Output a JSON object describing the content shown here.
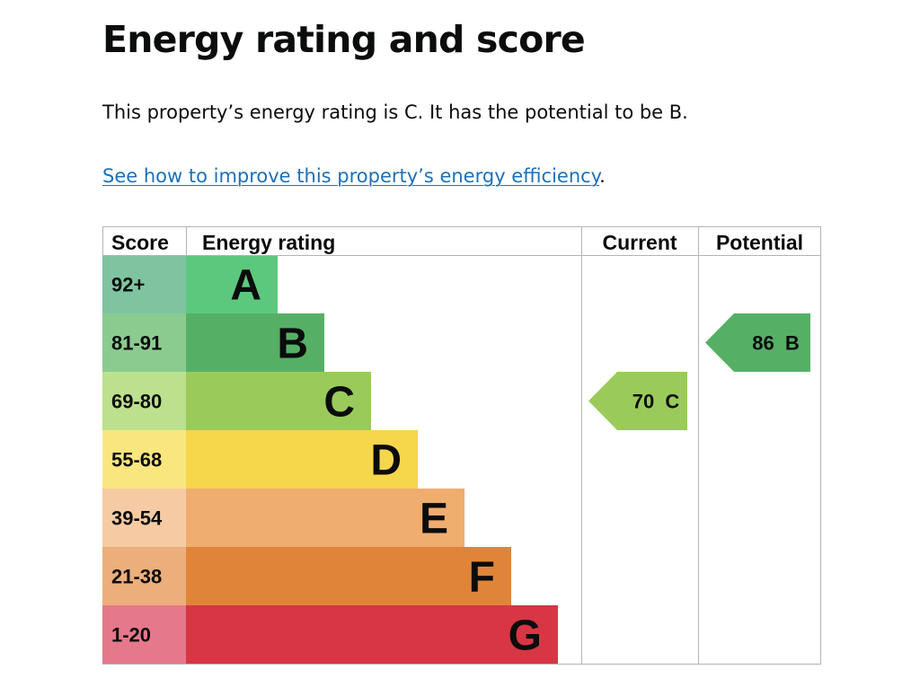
{
  "heading": "Energy rating and score",
  "summary": "This property’s energy rating is C. It has the potential to be B.",
  "improve_link": {
    "text": "See how to improve this property’s energy efficiency",
    "suffix": "."
  },
  "colors": {
    "link": "#1d70b8",
    "grid": "#b1b4b6",
    "text": "#0b0c0c"
  },
  "chart_data": {
    "type": "bar",
    "columns": [
      "Score",
      "Energy rating",
      "Current",
      "Potential"
    ],
    "bands": [
      {
        "band": "A",
        "score": "92+",
        "color": "#5cc87e",
        "score_bg": "#7fc4a1"
      },
      {
        "band": "B",
        "score": "81-91",
        "color": "#55b066",
        "score_bg": "#8bcb90"
      },
      {
        "band": "C",
        "score": "69-80",
        "color": "#9acb5a",
        "score_bg": "#bde08e"
      },
      {
        "band": "D",
        "score": "55-68",
        "color": "#f6d64b",
        "score_bg": "#fae67f"
      },
      {
        "band": "E",
        "score": "39-54",
        "color": "#efad70",
        "score_bg": "#f6cba4"
      },
      {
        "band": "F",
        "score": "21-38",
        "color": "#e0843a",
        "score_bg": "#ecae7b"
      },
      {
        "band": "G",
        "score": "1-20",
        "color": "#d83644",
        "score_bg": "#e5788a"
      }
    ],
    "current": {
      "score": 70,
      "band": "C",
      "label": "70  C",
      "color": "#9acb5a"
    },
    "potential": {
      "score": 86,
      "band": "B",
      "label": "86  B",
      "color": "#55b066"
    }
  }
}
